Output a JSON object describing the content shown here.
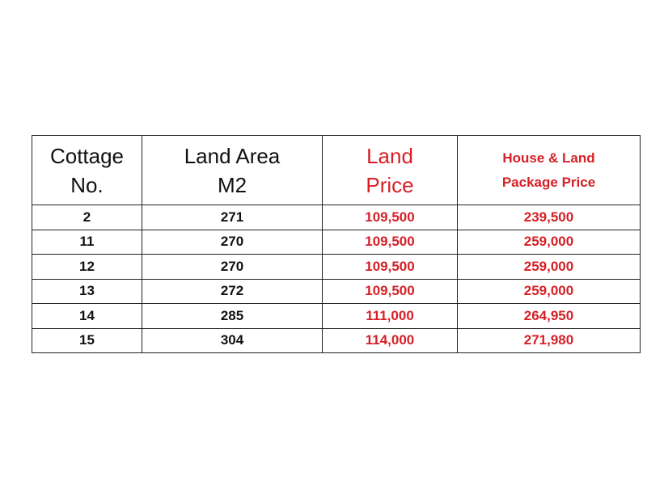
{
  "table": {
    "headers": [
      [
        "Cottage",
        "No."
      ],
      [
        "Land Area",
        "M2"
      ],
      [
        "Land",
        "Price"
      ],
      [
        "House & Land",
        "Package Price"
      ]
    ],
    "rows": [
      [
        "2",
        "271",
        "109,500",
        "239,500"
      ],
      [
        "11",
        "270",
        "109,500",
        "259,000"
      ],
      [
        "12",
        "270",
        "109,500",
        "259,000"
      ],
      [
        "13",
        "272",
        "109,500",
        "259,000"
      ],
      [
        "14",
        "285",
        "111,000",
        "264,950"
      ],
      [
        "15",
        "304",
        "114,000",
        "271,980"
      ]
    ]
  }
}
